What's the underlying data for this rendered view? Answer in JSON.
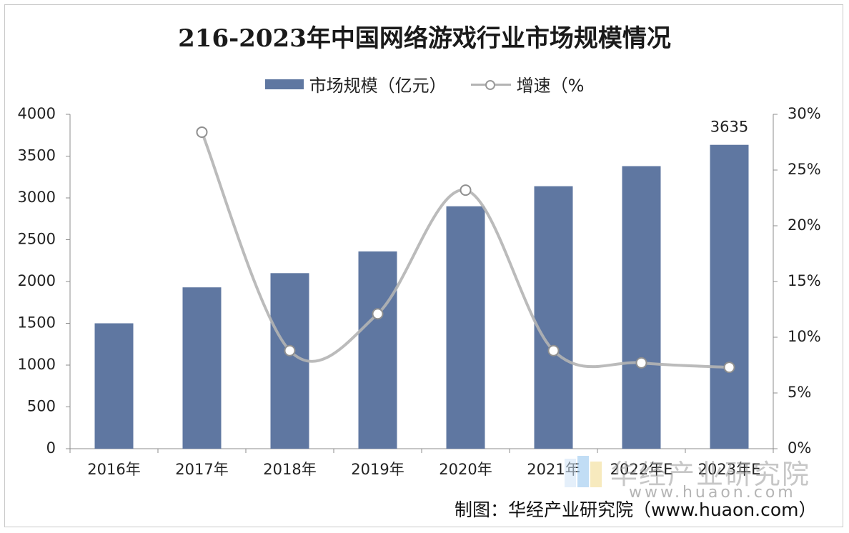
{
  "chart_data": {
    "type": "bar",
    "title": "216-2023年中国网络游戏行业市场规模情况",
    "categories": [
      "2016年",
      "2017年",
      "2018年",
      "2019年",
      "2020年",
      "2021年",
      "2022年E",
      "2023年E"
    ],
    "series": [
      {
        "name": "市场规模（亿元）",
        "type": "bar",
        "axis": "left",
        "color": "#5f77a1",
        "values": [
          1500,
          1930,
          2100,
          2360,
          2900,
          3140,
          3380,
          3635
        ]
      },
      {
        "name": "增速（%",
        "type": "line",
        "axis": "right",
        "color": "#b4b4b4",
        "values": [
          null,
          28.4,
          8.8,
          12.1,
          23.2,
          8.8,
          7.7,
          7.3
        ]
      }
    ],
    "data_labels": [
      {
        "category": "2023年E",
        "text": "3635"
      }
    ],
    "y_left": {
      "min": 0,
      "max": 4000,
      "ticks": [
        "0",
        "500",
        "1000",
        "1500",
        "2000",
        "2500",
        "3000",
        "3500",
        "4000"
      ]
    },
    "y_right": {
      "min": 0,
      "max": 30,
      "ticks": [
        "0%",
        "5%",
        "10%",
        "15%",
        "20%",
        "25%",
        "30%"
      ]
    },
    "legend_position": "top-center",
    "grid": false
  },
  "legend": {
    "bar_label": "市场规模（亿元）",
    "line_label": "增速（%"
  },
  "source": "制图：华经产业研究院（www.huaon.com）",
  "watermark": {
    "text": "华经产业研究院",
    "url": "www.huaon.com"
  }
}
